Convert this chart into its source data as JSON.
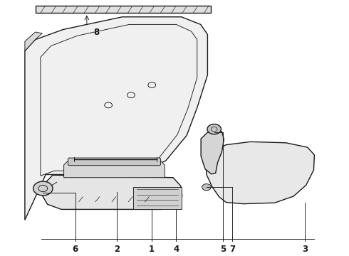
{
  "background_color": "#ffffff",
  "line_color": "#1a1a1a",
  "label_fontsize": 8.5,
  "figsize": [
    4.9,
    3.6
  ],
  "dpi": 100
}
